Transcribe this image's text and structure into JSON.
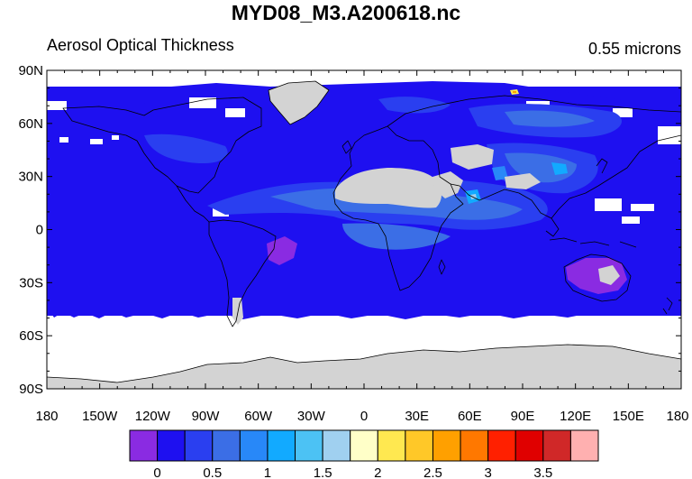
{
  "figure": {
    "title": "MYD08_M3.A200618.nc",
    "left_string": "Aerosol Optical Thickness",
    "right_string": "0.55 microns"
  },
  "map": {
    "projection": "cylindrical-equidistant",
    "lon_range": [
      -180,
      180
    ],
    "lat_range": [
      -90,
      90
    ],
    "missing_color": "#ffffff",
    "land_mask_color": "#d3d3d3",
    "background_aot_color": "#1e10f0",
    "lat_ticks": [
      {
        "value": 90,
        "label": "90N"
      },
      {
        "value": 60,
        "label": "60N"
      },
      {
        "value": 30,
        "label": "30N"
      },
      {
        "value": 0,
        "label": "0"
      },
      {
        "value": -30,
        "label": "30S"
      },
      {
        "value": -60,
        "label": "60S"
      },
      {
        "value": -90,
        "label": "90S"
      }
    ],
    "lon_ticks": [
      {
        "value": -180,
        "label": "180"
      },
      {
        "value": -150,
        "label": "150W"
      },
      {
        "value": -120,
        "label": "120W"
      },
      {
        "value": -90,
        "label": "90W"
      },
      {
        "value": -60,
        "label": "60W"
      },
      {
        "value": -30,
        "label": "30W"
      },
      {
        "value": 0,
        "label": "0"
      },
      {
        "value": 30,
        "label": "30E"
      },
      {
        "value": 60,
        "label": "60E"
      },
      {
        "value": 90,
        "label": "90E"
      },
      {
        "value": 120,
        "label": "120E"
      },
      {
        "value": 150,
        "label": "150E"
      },
      {
        "value": 180,
        "label": "180"
      }
    ]
  },
  "colorbar": {
    "colors": [
      "#8a2be2",
      "#1e10f0",
      "#2a3ff0",
      "#3b6ee6",
      "#2888f8",
      "#12aaff",
      "#4cc2f4",
      "#a0d0f0",
      "#ffffc8",
      "#ffe850",
      "#ffc828",
      "#ffa000",
      "#ff7800",
      "#ff2000",
      "#e00000",
      "#d02828",
      "#ffb0b0"
    ],
    "labels": [
      "0",
      "0.5",
      "1",
      "1.5",
      "2",
      "2.5",
      "3",
      "3.5"
    ]
  }
}
